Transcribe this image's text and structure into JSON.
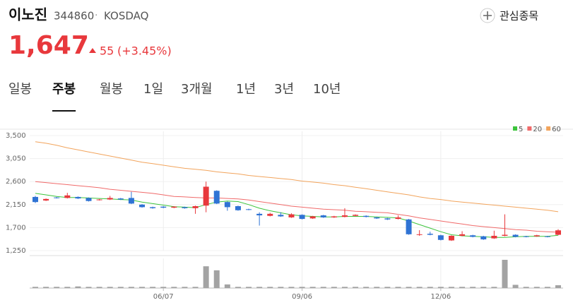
{
  "header": {
    "name": "이노진",
    "code": "344860",
    "separator": "·",
    "market": "KOSDAQ",
    "watch_label": "관심종목",
    "price": "1,647",
    "change": "55",
    "change_rate": "(+3.45%)",
    "tabs": [
      "일봉",
      "주봉",
      "월봉",
      "1일",
      "3개월",
      "1년",
      "3년",
      "10년"
    ],
    "active_tab": 1
  },
  "chart_data": {
    "type": "candlestick",
    "categories": [
      null,
      null,
      null,
      null,
      null,
      null,
      null,
      null,
      null,
      null,
      null,
      null,
      "06/07",
      null,
      null,
      null,
      null,
      null,
      null,
      null,
      null,
      null,
      null,
      null,
      null,
      "09/06",
      null,
      null,
      null,
      null,
      null,
      null,
      null,
      null,
      null,
      null,
      null,
      null,
      "12/06",
      null,
      null,
      null,
      null,
      null,
      null,
      null,
      null,
      null,
      null,
      null
    ],
    "open": [
      2300,
      2230,
      2290,
      2280,
      2300,
      2280,
      2240,
      2250,
      2270,
      2280,
      2150,
      2100,
      2110,
      2090,
      2100,
      2080,
      2130,
      2420,
      2200,
      2120,
      2060,
      1970,
      1930,
      1950,
      1900,
      1950,
      1880,
      1940,
      1900,
      1910,
      1930,
      1930,
      1900,
      1880,
      1870,
      1860,
      1560,
      1580,
      1550,
      1450,
      1540,
      1550,
      1530,
      1490,
      1540,
      1560,
      1530,
      1530,
      1530,
      1560
    ],
    "high": [
      2320,
      2270,
      2300,
      2380,
      2310,
      2290,
      2260,
      2320,
      2280,
      2400,
      2160,
      2110,
      2120,
      2120,
      2110,
      2130,
      2600,
      2430,
      2210,
      2130,
      2070,
      2000,
      1990,
      2000,
      1980,
      1960,
      1930,
      1950,
      1930,
      2080,
      1960,
      1940,
      1910,
      1890,
      1940,
      1870,
      1650,
      1620,
      1560,
      1550,
      1630,
      1560,
      1540,
      1640,
      1960,
      1570,
      1540,
      1560,
      1540,
      1670
    ],
    "low": [
      2180,
      2220,
      2270,
      2270,
      2260,
      2210,
      2230,
      2240,
      2240,
      2160,
      2090,
      2070,
      2080,
      2080,
      2070,
      1970,
      2000,
      2160,
      2030,
      2030,
      2040,
      1740,
      1920,
      1910,
      1890,
      1860,
      1870,
      1890,
      1890,
      1900,
      1920,
      1900,
      1870,
      1850,
      1860,
      1560,
      1540,
      1550,
      1450,
      1440,
      1530,
      1510,
      1460,
      1480,
      1530,
      1510,
      1510,
      1520,
      1510,
      1550
    ],
    "close": [
      2200,
      2260,
      2280,
      2330,
      2270,
      2220,
      2250,
      2280,
      2250,
      2170,
      2100,
      2080,
      2090,
      2110,
      2080,
      2120,
      2500,
      2170,
      2100,
      2040,
      2050,
      1940,
      1970,
      1920,
      1960,
      1870,
      1920,
      1900,
      1920,
      1940,
      1950,
      1910,
      1880,
      1860,
      1900,
      1570,
      1570,
      1560,
      1460,
      1540,
      1570,
      1520,
      1470,
      1540,
      1560,
      1520,
      1520,
      1550,
      1520,
      1647
    ],
    "up_color": "#e8383c",
    "down_color": "#2f73d4",
    "volume": [
      3,
      3,
      3,
      3,
      4,
      3,
      3,
      3,
      3,
      3,
      3,
      3,
      3,
      3,
      3,
      3,
      54,
      44,
      9,
      3,
      3,
      3,
      3,
      3,
      3,
      3,
      3,
      3,
      3,
      3,
      3,
      3,
      3,
      3,
      3,
      3,
      3,
      3,
      3,
      3,
      3,
      3,
      3,
      3,
      70,
      8,
      3,
      3,
      3,
      7
    ],
    "volume_color": "#a3a3a3",
    "series": [
      {
        "name": "5",
        "color": "#3cc43c",
        "values": [
          2370,
          2340,
          2310,
          2290,
          2290,
          2280,
          2270,
          2260,
          2250,
          2240,
          2200,
          2170,
          2140,
          2110,
          2100,
          2090,
          2150,
          2200,
          2220,
          2210,
          2150,
          2080,
          2030,
          1990,
          1950,
          1930,
          1920,
          1910,
          1910,
          1920,
          1920,
          1920,
          1910,
          1900,
          1890,
          1830,
          1760,
          1690,
          1620,
          1560,
          1540,
          1530,
          1520,
          1510,
          1510,
          1520,
          1530,
          1530,
          1530,
          1550
        ]
      },
      {
        "name": "20",
        "color": "#f06a6a",
        "values": [
          2600,
          2580,
          2560,
          2540,
          2520,
          2500,
          2480,
          2450,
          2430,
          2410,
          2390,
          2370,
          2340,
          2310,
          2300,
          2290,
          2280,
          2280,
          2270,
          2260,
          2240,
          2210,
          2180,
          2150,
          2120,
          2100,
          2080,
          2060,
          2050,
          2040,
          2020,
          2010,
          2000,
          1990,
          1960,
          1930,
          1890,
          1860,
          1830,
          1800,
          1770,
          1740,
          1720,
          1700,
          1680,
          1660,
          1650,
          1630,
          1620,
          1610
        ]
      },
      {
        "name": "60",
        "color": "#f2a45c",
        "values": [
          3380,
          3350,
          3310,
          3260,
          3220,
          3180,
          3140,
          3100,
          3060,
          3020,
          2980,
          2950,
          2920,
          2890,
          2860,
          2840,
          2820,
          2790,
          2770,
          2750,
          2720,
          2700,
          2680,
          2660,
          2640,
          2610,
          2590,
          2570,
          2540,
          2520,
          2490,
          2460,
          2430,
          2400,
          2370,
          2340,
          2300,
          2270,
          2250,
          2220,
          2200,
          2180,
          2160,
          2140,
          2120,
          2100,
          2080,
          2060,
          2040,
          2010
        ]
      }
    ],
    "ylim": [
      1250,
      3500
    ],
    "yticks": [
      {
        "value": 1250,
        "label": "1,250"
      },
      {
        "value": 1700,
        "label": "1,700"
      },
      {
        "value": 2150,
        "label": "2,150"
      },
      {
        "value": 2600,
        "label": "2,600"
      },
      {
        "value": 3050,
        "label": "3,050"
      },
      {
        "value": 3500,
        "label": "3,500"
      }
    ],
    "grid": true
  }
}
